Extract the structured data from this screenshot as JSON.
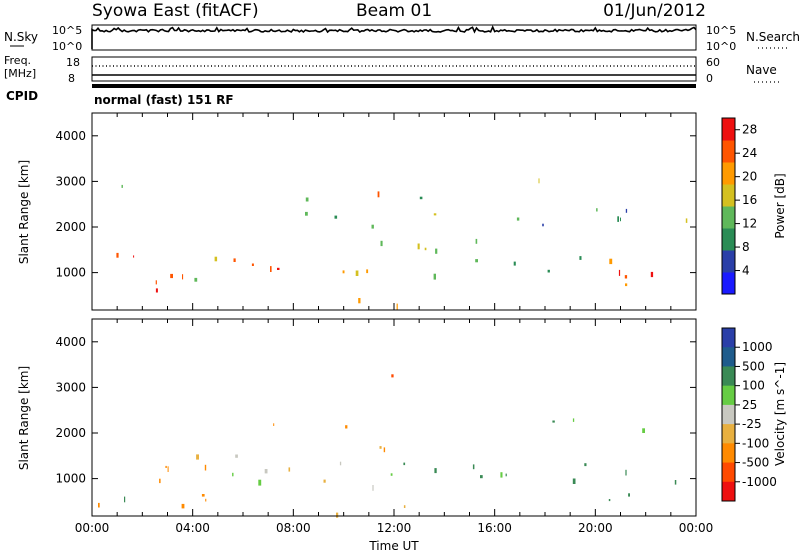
{
  "header": {
    "station": "Syowa East (fitACF)",
    "beam": "Beam 01",
    "date": "01/Jun/2012"
  },
  "noise_panel": {
    "left_label": "N.Sky",
    "right_label": "N.Search",
    "top_tick": "10^5",
    "bottom_tick": "10^0"
  },
  "freq_panel": {
    "left_label_1": "Freq.",
    "left_label_2": "[MHz]",
    "left_top_tick": "18",
    "left_bottom_tick": "8",
    "right_label": "Nave",
    "right_top_tick": "60",
    "right_bottom_tick": "0"
  },
  "cpid": {
    "label": "CPID",
    "mode": "normal (fast) 151 RF"
  },
  "chart_data": [
    {
      "type": "heatmap",
      "parameter": "power",
      "ylabel": "Slant Range [km]",
      "ylim": [
        180,
        4500
      ],
      "yticks": [
        1000,
        2000,
        3000,
        4000
      ],
      "x_unit": "hours UT",
      "xlim": [
        0,
        24
      ],
      "colorbar_label": "Power [dB]",
      "colorbar_ticks": [
        4,
        8,
        12,
        16,
        20,
        24,
        28
      ],
      "colorbar_range": [
        0,
        30
      ],
      "colors": [
        "#1a1aff",
        "#2a3fa8",
        "#2a8c55",
        "#5fb85a",
        "#d4c020",
        "#ff9a00",
        "#ff5500",
        "#ee1010"
      ],
      "scatter_regions": [
        {
          "t0": 0.0,
          "t1": 4.5,
          "r0": 400,
          "r1": 1400,
          "value": 22
        },
        {
          "t0": 0.5,
          "t1": 3.5,
          "r0": 600,
          "r1": 900,
          "value": 26
        },
        {
          "t0": 4.0,
          "t1": 11.5,
          "r0": 700,
          "r1": 1500,
          "value": 18
        },
        {
          "t0": 6.0,
          "t1": 10.0,
          "r0": 1000,
          "r1": 1400,
          "value": 24
        },
        {
          "t0": 7.0,
          "t1": 12.0,
          "r0": 1600,
          "r1": 2300,
          "value": 12
        },
        {
          "t0": 11.5,
          "t1": 16.5,
          "r0": 900,
          "r1": 1700,
          "value": 16
        },
        {
          "t0": 13.0,
          "t1": 16.0,
          "r0": 1300,
          "r1": 1600,
          "value": 24
        },
        {
          "t0": 15.0,
          "t1": 20.0,
          "r0": 900,
          "r1": 1600,
          "value": 10
        },
        {
          "t0": 17.5,
          "t1": 21.5,
          "r0": 1800,
          "r1": 2400,
          "value": 10
        },
        {
          "t0": 19.5,
          "t1": 24.0,
          "r0": 500,
          "r1": 1300,
          "value": 24
        },
        {
          "t0": 20.5,
          "t1": 23.0,
          "r0": 600,
          "r1": 1000,
          "value": 27
        },
        {
          "t0": 5.0,
          "t1": 14.0,
          "r0": 200,
          "r1": 400,
          "value": 18
        },
        {
          "t0": 11.0,
          "t1": 12.2,
          "r0": 2400,
          "r1": 3300,
          "value": 20
        },
        {
          "t0": 0.3,
          "t1": 24.0,
          "r0": 2000,
          "r1": 3300,
          "value": 14
        }
      ]
    },
    {
      "type": "heatmap",
      "parameter": "velocity",
      "ylabel": "Slant Range [km]",
      "ylim": [
        180,
        4500
      ],
      "yticks": [
        1000,
        2000,
        3000,
        4000
      ],
      "x_unit": "hours UT",
      "xlim": [
        0,
        24
      ],
      "xtick_labels": [
        "00:00",
        "04:00",
        "08:00",
        "12:00",
        "16:00",
        "20:00",
        "00:00"
      ],
      "xlabel": "Time UT",
      "colorbar_label": "Velocity [m s^-1]",
      "colorbar_ticks": [
        "1000",
        "500",
        "100",
        "25",
        "-25",
        "-100",
        "-500",
        "-1000"
      ],
      "colors": [
        "#2a3fa8",
        "#1f5c8c",
        "#3a8a55",
        "#66cc44",
        "#c8c8c0",
        "#e8b040",
        "#ff8a00",
        "#ff4a00",
        "#ee1010"
      ],
      "scatter_regions": [
        {
          "t0": 0.0,
          "t1": 4.5,
          "r0": 300,
          "r1": 1400,
          "value": -200
        },
        {
          "t0": 2.5,
          "t1": 5.0,
          "r0": 600,
          "r1": 1200,
          "value": -400
        },
        {
          "t0": 4.0,
          "t1": 11.5,
          "r0": 700,
          "r1": 1500,
          "value": 0
        },
        {
          "t0": 6.0,
          "t1": 11.0,
          "r0": 1000,
          "r1": 1400,
          "value": 10
        },
        {
          "t0": 7.0,
          "t1": 12.0,
          "r0": 1600,
          "r1": 2300,
          "value": -120
        },
        {
          "t0": 11.5,
          "t1": 17.5,
          "r0": 900,
          "r1": 1700,
          "value": 120
        },
        {
          "t0": 15.0,
          "t1": 20.0,
          "r0": 500,
          "r1": 1300,
          "value": 110
        },
        {
          "t0": 17.5,
          "t1": 22.0,
          "r0": 1700,
          "r1": 2300,
          "value": 90
        },
        {
          "t0": 19.0,
          "t1": 24.0,
          "r0": 400,
          "r1": 1200,
          "value": 150
        },
        {
          "t0": 11.0,
          "t1": 12.2,
          "r0": 2300,
          "r1": 3300,
          "value": -700
        },
        {
          "t0": 0.0,
          "t1": 3.0,
          "r0": 200,
          "r1": 600,
          "value": 200
        },
        {
          "t0": 8.0,
          "t1": 14.0,
          "r0": 200,
          "r1": 450,
          "value": -110
        }
      ]
    }
  ]
}
